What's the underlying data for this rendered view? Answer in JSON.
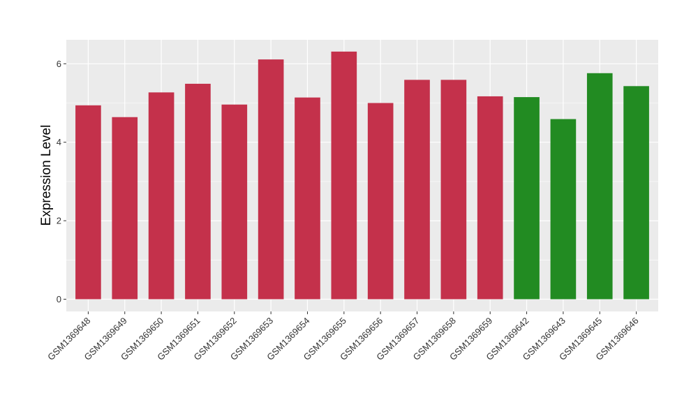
{
  "chart_data": {
    "type": "bar",
    "title": "",
    "xlabel": "",
    "ylabel": "Expression Level",
    "ylim": [
      0,
      6.6
    ],
    "yticks": [
      0,
      2,
      4,
      6
    ],
    "grid": true,
    "legend": "none",
    "categories": [
      "GSM1369648",
      "GSM1369649",
      "GSM1369650",
      "GSM1369651",
      "GSM1369652",
      "GSM1369653",
      "GSM1369654",
      "GSM1369655",
      "GSM1369656",
      "GSM1369657",
      "GSM1369658",
      "GSM1369659",
      "GSM1369642",
      "GSM1369643",
      "GSM1369645",
      "GSM1369646"
    ],
    "values": [
      4.94,
      4.64,
      5.27,
      5.49,
      4.96,
      6.11,
      5.14,
      6.31,
      5.0,
      5.59,
      5.59,
      5.17,
      5.15,
      4.59,
      5.76,
      5.43
    ],
    "bar_colors": [
      "#c4314b",
      "#c4314b",
      "#c4314b",
      "#c4314b",
      "#c4314b",
      "#c4314b",
      "#c4314b",
      "#c4314b",
      "#c4314b",
      "#c4314b",
      "#c4314b",
      "#c4314b",
      "#228b22",
      "#228b22",
      "#228b22",
      "#228b22"
    ],
    "panel_color": "#ebebeb",
    "grid_color": "#ffffff"
  }
}
